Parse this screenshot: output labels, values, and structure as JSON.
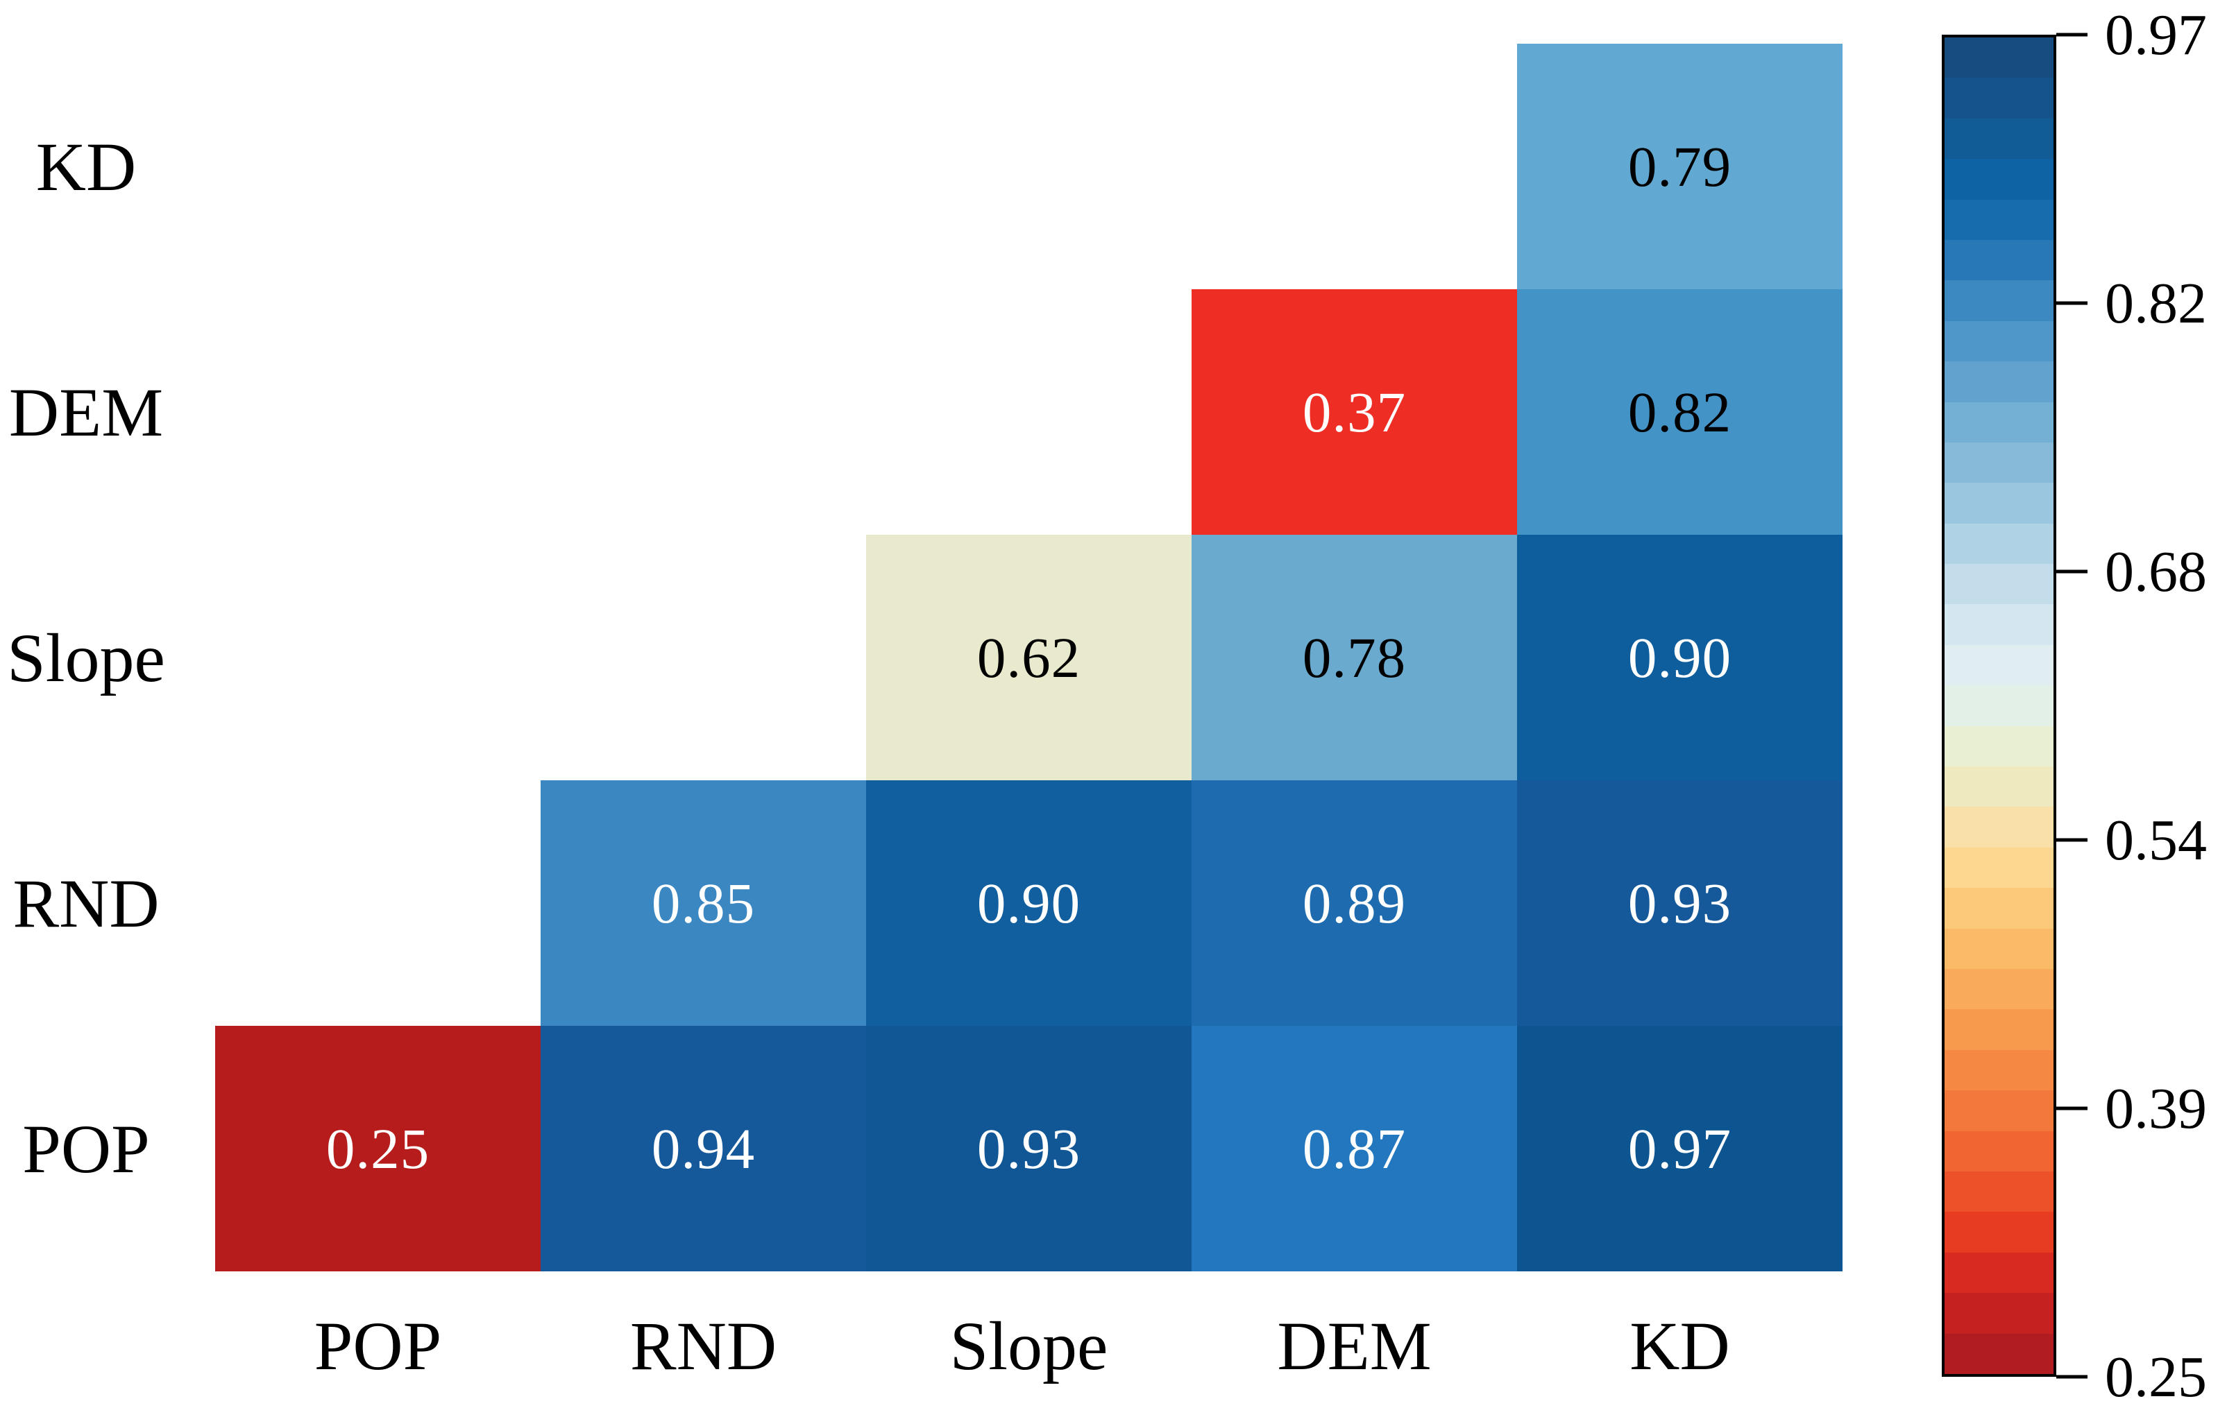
{
  "figure": {
    "background": "#ffffff",
    "text_color": "#000000"
  },
  "chart_data": {
    "type": "heatmap",
    "title": "",
    "xlabel": "",
    "ylabel": "",
    "grid": false,
    "legend_position": "colorbar-right",
    "col_labels_left_to_right": [
      "POP",
      "RND",
      "Slope",
      "DEM",
      "KD"
    ],
    "row_labels_top_to_bottom": [
      "KD",
      "DEM",
      "Slope",
      "RND",
      "POP"
    ],
    "shape": "lower-triangle (cells shown only where column index >= row variable index)",
    "cells": [
      {
        "row": "KD",
        "col": "KD",
        "value": "0.79",
        "bg": "#61A9D2",
        "text": "#000000"
      },
      {
        "row": "DEM",
        "col": "DEM",
        "value": "0.37",
        "bg": "#EE2D24",
        "text": "#ffffff"
      },
      {
        "row": "DEM",
        "col": "KD",
        "value": "0.82",
        "bg": "#4493C6",
        "text": "#000000"
      },
      {
        "row": "Slope",
        "col": "Slope",
        "value": "0.62",
        "bg": "#E9E9CD",
        "text": "#000000"
      },
      {
        "row": "Slope",
        "col": "DEM",
        "value": "0.78",
        "bg": "#6BAACF",
        "text": "#000000"
      },
      {
        "row": "Slope",
        "col": "KD",
        "value": "0.90",
        "bg": "#0E5E9D",
        "text": "#ffffff"
      },
      {
        "row": "RND",
        "col": "RND",
        "value": "0.85",
        "bg": "#3B87C1",
        "text": "#ffffff"
      },
      {
        "row": "RND",
        "col": "Slope",
        "value": "0.90",
        "bg": "#115F9F",
        "text": "#ffffff"
      },
      {
        "row": "RND",
        "col": "DEM",
        "value": "0.89",
        "bg": "#1E6CAF",
        "text": "#ffffff"
      },
      {
        "row": "RND",
        "col": "KD",
        "value": "0.93",
        "bg": "#15599A",
        "text": "#ffffff"
      },
      {
        "row": "POP",
        "col": "POP",
        "value": "0.25",
        "bg": "#B51C1B",
        "text": "#ffffff"
      },
      {
        "row": "POP",
        "col": "RND",
        "value": "0.94",
        "bg": "#16599B",
        "text": "#ffffff"
      },
      {
        "row": "POP",
        "col": "Slope",
        "value": "0.93",
        "bg": "#125795",
        "text": "#ffffff"
      },
      {
        "row": "POP",
        "col": "DEM",
        "value": "0.87",
        "bg": "#2277BE",
        "text": "#ffffff"
      },
      {
        "row": "POP",
        "col": "KD",
        "value": "0.97",
        "bg": "#0D5590",
        "text": "#ffffff"
      }
    ],
    "colorbar": {
      "min": 0.25,
      "max": 0.97,
      "tick_labels_top_to_bottom": [
        "0.97",
        "0.82",
        "0.68",
        "0.54",
        "0.39",
        "0.25"
      ],
      "border_color": "#000000",
      "band_colors_top_to_bottom": [
        "#174C80",
        "#14538B",
        "#115B97",
        "#0D63A3",
        "#176CAE",
        "#2878B8",
        "#3C88C1",
        "#4F97C9",
        "#61A3CE",
        "#74AFD4",
        "#87BAD9",
        "#9AC6DF",
        "#AFD2E5",
        "#C3DDEB",
        "#D4E6EF",
        "#E0EDF1",
        "#E3F0E7",
        "#E9EFD3",
        "#EFE9BF",
        "#F9E0A8",
        "#FDD68F",
        "#FCC97B",
        "#FBBA68",
        "#F9AA5A",
        "#F79A4E",
        "#F58944",
        "#F2783B",
        "#F06532",
        "#EC5129",
        "#E73C22",
        "#D82A21",
        "#C42120",
        "#B01C20"
      ]
    }
  }
}
